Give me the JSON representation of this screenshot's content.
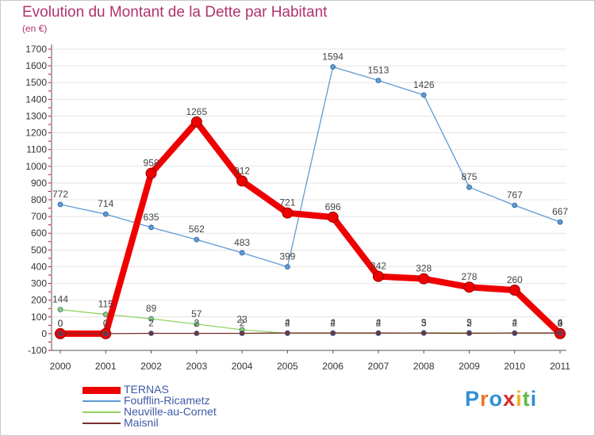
{
  "title": "Evolution du Montant de la Dette par Habitant",
  "subtitle": "(en €)",
  "brand": "Proxiti",
  "chart_data": {
    "type": "line",
    "title": "Evolution du Montant de la Dette par Habitant",
    "ylabel": "(en €)",
    "xlabel": "",
    "ylim": [
      -100,
      1700
    ],
    "yticks": [
      -100,
      0,
      100,
      200,
      300,
      400,
      500,
      600,
      700,
      800,
      900,
      1000,
      1100,
      1200,
      1300,
      1400,
      1500,
      1600,
      1700
    ],
    "categories": [
      "2000",
      "2001",
      "2002",
      "2003",
      "2004",
      "2005",
      "2006",
      "2007",
      "2008",
      "2009",
      "2010",
      "2011"
    ],
    "legend_position": "bottom-left",
    "series": [
      {
        "name": "TERNAS",
        "color": "#ee0000",
        "values": [
          0,
          0,
          958,
          1265,
          912,
          721,
          696,
          342,
          328,
          278,
          260,
          0
        ],
        "labels": [
          "0",
          "0",
          "958",
          "1265",
          "912",
          "721",
          "696",
          "342",
          "328",
          "278",
          "260",
          "0"
        ]
      },
      {
        "name": "Foufflin-Ricametz",
        "color": "#5d9bd4",
        "values": [
          772,
          714,
          635,
          562,
          483,
          399,
          1594,
          1513,
          1426,
          875,
          767,
          667
        ],
        "labels": [
          "772",
          "714",
          "635",
          "562",
          "483",
          "399",
          "1594",
          "1513",
          "1426",
          "875",
          "767",
          "667"
        ],
        "break_after_index": 5
      },
      {
        "name": "Neuville-au-Cornet",
        "color": "#8fd45f",
        "values": [
          144,
          115,
          89,
          57,
          23,
          2,
          2,
          2,
          5,
          5,
          2,
          2
        ],
        "labels": [
          "144",
          "115",
          "89",
          "57",
          "23",
          "2",
          "2",
          "2",
          "5",
          "5",
          "2",
          "2"
        ]
      },
      {
        "name": "Maisnil",
        "color": "#7a3030",
        "values": [
          0,
          0,
          2,
          2,
          2,
          4,
          4,
          4,
          3,
          2,
          4,
          4
        ],
        "labels": [
          "0",
          "0",
          "2",
          "2",
          "2",
          "4",
          "4",
          "4",
          "3",
          "2",
          "4",
          "4"
        ]
      }
    ]
  }
}
